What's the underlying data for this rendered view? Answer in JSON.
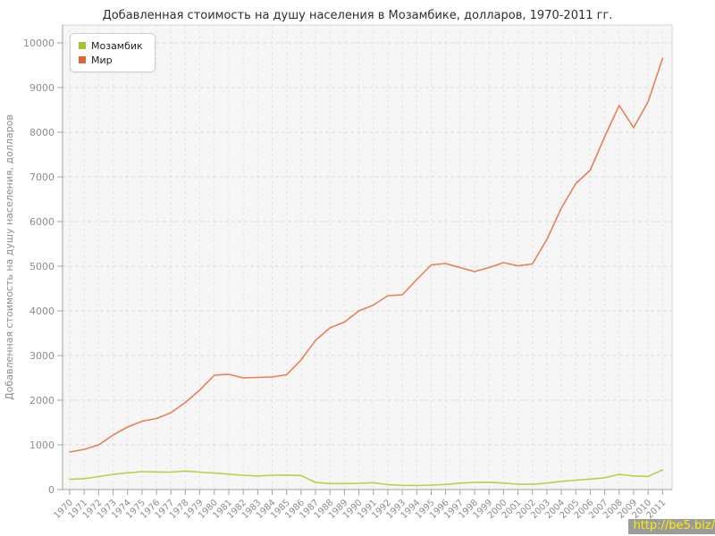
{
  "watermark": {
    "text": "http://be5.biz/"
  },
  "colors": {
    "mozambique_line": "#b5d246",
    "mozambique_marker": "#a6c42a",
    "world_line": "#e5805a",
    "world_marker": "#e0662f",
    "plot_bg": "#f6f6f6",
    "plot_border": "#d6d6d6",
    "grid_h": "#d9d9d9",
    "grid_v": "#e4e4e4",
    "axis": "#a0a0a0",
    "tick_label": "#8d8d8d"
  },
  "chart_data": {
    "type": "line",
    "title": "Добавленная стоимость на душу населения в Мозамбике, долларов, 1970-2011 гг.",
    "xlabel": "",
    "ylabel": "Добавленная стоимость на душу населения, долларов",
    "ylim": [
      0,
      10000
    ],
    "ytick_step": 1000,
    "grid": true,
    "legend_position": "top-left",
    "x": [
      1970,
      1971,
      1972,
      1973,
      1974,
      1975,
      1976,
      1977,
      1978,
      1979,
      1980,
      1981,
      1982,
      1983,
      1984,
      1985,
      1986,
      1987,
      1988,
      1989,
      1990,
      1991,
      1992,
      1993,
      1994,
      1995,
      1996,
      1997,
      1998,
      1999,
      2000,
      2001,
      2002,
      2003,
      2004,
      2005,
      2006,
      2007,
      2008,
      2009,
      2010,
      2011
    ],
    "series": [
      {
        "name": "Мозамбик",
        "values": [
          230,
          245,
          290,
          340,
          375,
          400,
          395,
          390,
          415,
          390,
          370,
          345,
          320,
          305,
          320,
          325,
          315,
          160,
          135,
          135,
          140,
          155,
          110,
          95,
          90,
          100,
          115,
          145,
          160,
          165,
          145,
          120,
          118,
          145,
          185,
          210,
          235,
          265,
          340,
          305,
          295,
          440
        ]
      },
      {
        "name": "Мир",
        "values": [
          840,
          900,
          1000,
          1220,
          1400,
          1530,
          1590,
          1720,
          1950,
          2230,
          2560,
          2580,
          2500,
          2510,
          2520,
          2570,
          2900,
          3340,
          3620,
          3750,
          4000,
          4130,
          4340,
          4360,
          4700,
          5030,
          5060,
          4970,
          4880,
          4970,
          5080,
          5010,
          5050,
          5600,
          6300,
          6850,
          7150,
          7900,
          8600,
          8100,
          8680,
          9650
        ]
      }
    ]
  }
}
